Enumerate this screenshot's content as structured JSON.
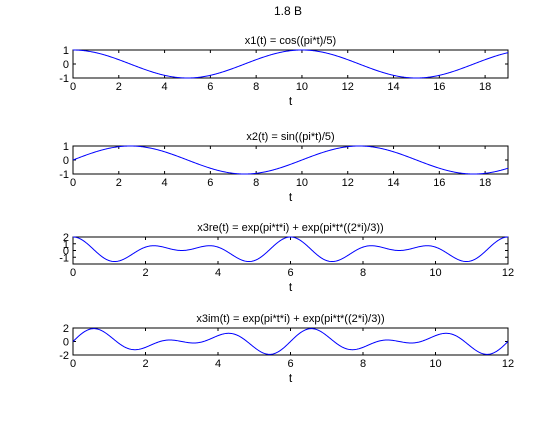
{
  "figure": {
    "suptitle": "1.8 B"
  },
  "chart_data": [
    {
      "type": "line",
      "title": "x1(t) = cos((pi*t)/5)",
      "xlabel": "t",
      "ylabel": "",
      "xlim": [
        0,
        19
      ],
      "ylim": [
        -1,
        1
      ],
      "xticks": [
        0,
        2,
        4,
        6,
        8,
        10,
        12,
        14,
        16,
        18
      ],
      "yticks": [
        -1,
        0,
        1
      ],
      "grid": false,
      "series": [
        {
          "func": "cos(pi*t/5)",
          "t_range": [
            0,
            19
          ],
          "color": "#0000ff"
        }
      ]
    },
    {
      "type": "line",
      "title": "x2(t) = sin((pi*t)/5)",
      "xlabel": "t",
      "ylabel": "",
      "xlim": [
        0,
        19
      ],
      "ylim": [
        -1,
        1
      ],
      "xticks": [
        0,
        2,
        4,
        6,
        8,
        10,
        12,
        14,
        16,
        18
      ],
      "yticks": [
        -1,
        0,
        1
      ],
      "grid": false,
      "series": [
        {
          "func": "sin(pi*t/5)",
          "t_range": [
            0,
            19
          ],
          "color": "#0000ff"
        }
      ]
    },
    {
      "type": "line",
      "title": "x3re(t) = exp(pi*t*i) + exp(pi*t*((2*i)/3))",
      "xlabel": "t",
      "ylabel": "",
      "xlim": [
        0,
        12
      ],
      "ylim": [
        -2,
        2
      ],
      "xticks": [
        0,
        2,
        4,
        6,
        8,
        10,
        12
      ],
      "yticks": [
        -1,
        0,
        1,
        2
      ],
      "grid": false,
      "series": [
        {
          "func": "cos(pi*t) + cos(2*pi*t/3)",
          "t_range": [
            0,
            12
          ],
          "color": "#0000ff"
        }
      ]
    },
    {
      "type": "line",
      "title": "x3im(t) = exp(pi*t*i) + exp(pi*t*((2*i)/3))",
      "xlabel": "t",
      "ylabel": "",
      "xlim": [
        0,
        12
      ],
      "ylim": [
        -2,
        2
      ],
      "xticks": [
        0,
        2,
        4,
        6,
        8,
        10,
        12
      ],
      "yticks": [
        -2,
        0,
        2
      ],
      "grid": false,
      "series": [
        {
          "func": "sin(pi*t) + sin(2*pi*t/3)",
          "t_range": [
            0,
            12
          ],
          "color": "#0000ff"
        }
      ]
    }
  ]
}
